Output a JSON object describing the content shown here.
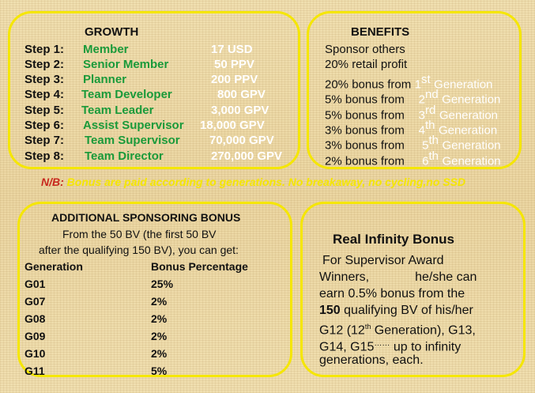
{
  "growth": {
    "heading": "GROWTH",
    "steps": [
      {
        "label": "Step 1:",
        "name": "Member",
        "amount": "17 USD"
      },
      {
        "label": "Step 2:",
        "name": "Senior Member",
        "amount": "50 PPV"
      },
      {
        "label": "Step 3:",
        "name": "Planner",
        "amount": "200 PPV"
      },
      {
        "label": "Step 4:",
        "name": "Team Developer",
        "amount": "800 GPV"
      },
      {
        "label": "Step 5:",
        "name": "Team Leader",
        "amount": "3,000 GPV"
      },
      {
        "label": "Step 6:",
        "name": "Assist Supervisor",
        "amount": "18,000 GPV"
      },
      {
        "label": "Step 7:",
        "name": "Team Supervisor",
        "amount": "70,000 GPV"
      },
      {
        "label": "Step 8:",
        "name": "Team Director",
        "amount": "270,000 GPV"
      }
    ]
  },
  "benefits": {
    "heading": "BENEFITS",
    "items": [
      {
        "text": "Sponsor others",
        "num": "",
        "sup": "",
        "gen": ""
      },
      {
        "text": "20% retail profit",
        "num": "",
        "sup": "",
        "gen": ""
      },
      {
        "text": "20% bonus from",
        "num": "1",
        "sup": "st",
        "gen": "Generation"
      },
      {
        "text": "5% bonus from",
        "num": "2",
        "sup": "nd",
        "gen": "Generation"
      },
      {
        "text": "5% bonus from",
        "num": "3",
        "sup": "rd",
        "gen": "Generation"
      },
      {
        "text": "3% bonus from",
        "num": "4",
        "sup": "th",
        "gen": "Generation"
      },
      {
        "text": "3% bonus from",
        "num": "5",
        "sup": "th",
        "gen": "Generation"
      },
      {
        "text": "2% bonus from",
        "num": "6",
        "sup": "th",
        "gen": "Generation"
      }
    ]
  },
  "note": {
    "label": "N/B:",
    "text": "Bonus are paid according to generations.  No breakaway, no cycling,no SSD"
  },
  "additional": {
    "heading": "ADDITIONAL SPONSORING BONUS",
    "line1": "From the 50 BV (the first 50 BV",
    "line2": "after the qualifying 150 BV), you can get:",
    "col_generation": "Generation",
    "col_bonus": "Bonus Percentage",
    "rows": [
      {
        "gen": "G01",
        "pct": "25%"
      },
      {
        "gen": "G07",
        "pct": "2%"
      },
      {
        "gen": "G08",
        "pct": "2%"
      },
      {
        "gen": "G09",
        "pct": "2%"
      },
      {
        "gen": "G10",
        "pct": "2%"
      },
      {
        "gen": "G11",
        "pct": "5%"
      }
    ]
  },
  "infinity": {
    "title": "Real Infinity Bonus",
    "l1": "For Supervisor Award",
    "l2a": "Winners,",
    "l2b": "he/she can",
    "l3": "earn 0.5% bonus from the",
    "l4_bold": "150",
    "l4_rest": " qualifying BV of his/her",
    "l5_pre": "G12 (12",
    "l5_sup": "th",
    "l5_post": " Generation), G13,",
    "l6_pre": "G14, G15",
    "l6_dots": "……",
    "l6_post": " up to infinity",
    "l7": "generations, each."
  }
}
